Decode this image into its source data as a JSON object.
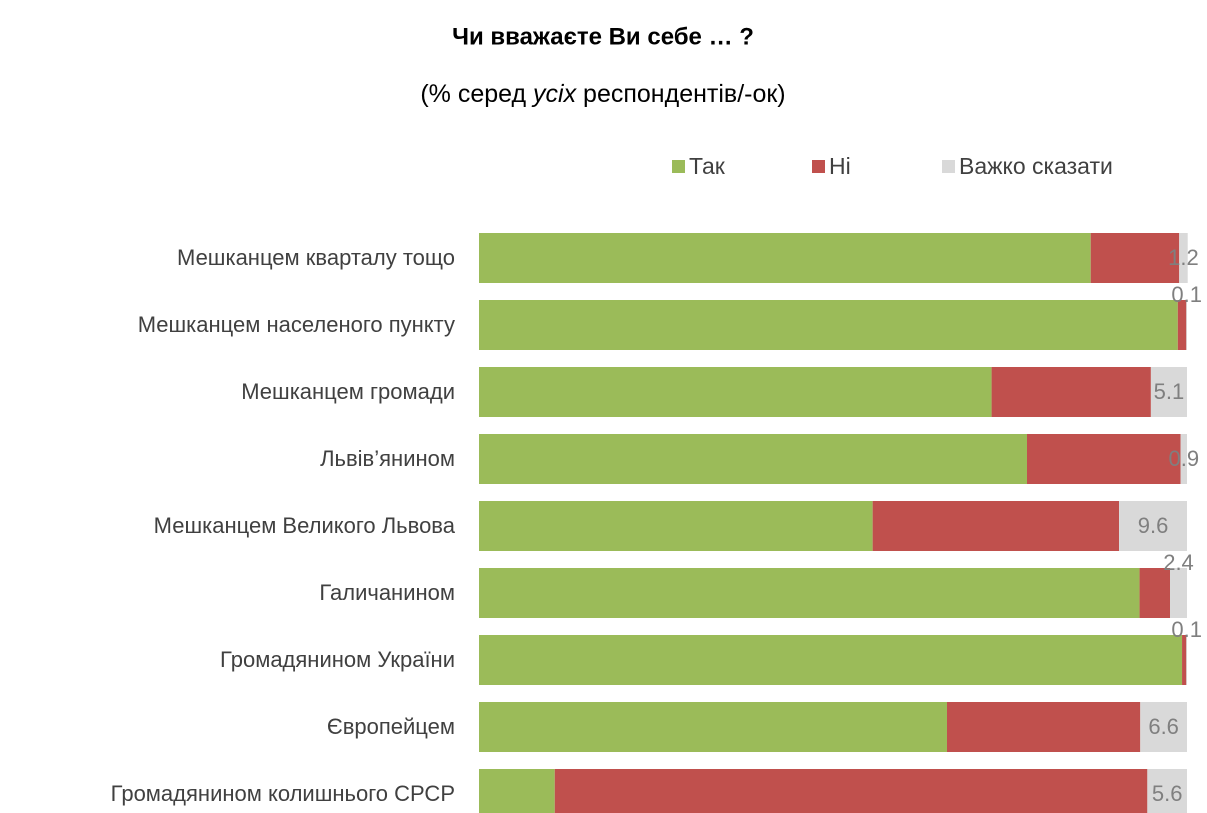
{
  "chart_data": {
    "type": "stacked_barh",
    "title": "Чи вважаєте Ви себе … ?",
    "subtitle": [
      "(% серед ",
      "усіх",
      " респондентів/-ок)"
    ],
    "categories": [
      "Мешканцем кварталу тощо",
      "Мешканцем населеного пункту",
      "Мешканцем громади",
      "Львів’янином",
      "Мешканцем Великого Львова",
      "Галичанином",
      "Громадянином України",
      "Європейцем",
      "Громадянином колишнього СРСР"
    ],
    "series": [
      {
        "name": "Так",
        "color": "#9bbb59",
        "values": [
          86.4,
          98.7,
          72.4,
          77.4,
          55.6,
          93.3,
          99.3,
          66.1,
          10.7
        ]
      },
      {
        "name": "Ні",
        "color": "#c0504d",
        "values": [
          12.5,
          1.2,
          22.5,
          21.7,
          34.8,
          4.3,
          0.6,
          27.3,
          83.7
        ]
      },
      {
        "name": "Важко сказати",
        "color": "#d9d9d9",
        "values": [
          1.2,
          0.1,
          5.1,
          0.9,
          9.6,
          2.4,
          0.1,
          6.6,
          5.6
        ]
      }
    ],
    "xlim": [
      0,
      100
    ],
    "legend": "top"
  }
}
